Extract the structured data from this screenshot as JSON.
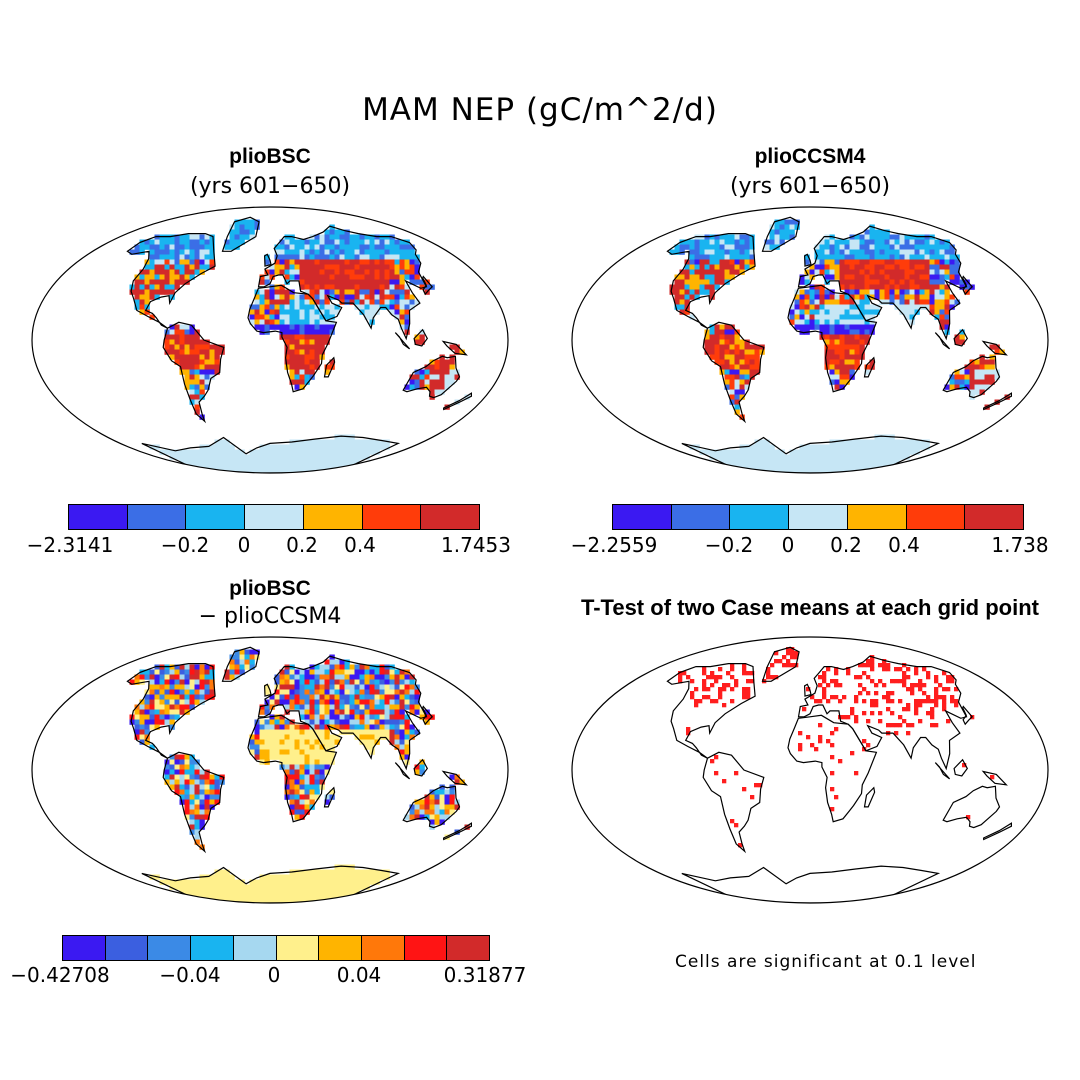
{
  "main_title": "MAM NEP (gC/m^2/d)",
  "panels": {
    "top_left": {
      "title": "plioBSC",
      "subtitle": "(yrs 601−650)"
    },
    "top_right": {
      "title": "plioCCSM4",
      "subtitle": "(yrs 601−650)"
    },
    "bottom_left": {
      "title": "plioBSC",
      "subtitle": "− plioCCSM4"
    },
    "bottom_right": {
      "title": "T-Test of two Case means at each grid point",
      "note": "Cells are significant at 0.1 level"
    }
  },
  "colorbars": {
    "top_left": {
      "colors": [
        "#3b19f2",
        "#3b6ee6",
        "#19b4f0",
        "#c6e6f5",
        "#ffb400",
        "#ff3c0a",
        "#d22a2a"
      ],
      "labels": [
        "−2.3141",
        "−0.2",
        "0",
        "0.2",
        "0.4",
        "1.7453"
      ]
    },
    "top_right": {
      "colors": [
        "#3b19f2",
        "#3b6ee6",
        "#19b4f0",
        "#c6e6f5",
        "#ffb400",
        "#ff3c0a",
        "#d22a2a"
      ],
      "labels": [
        "−2.2559",
        "−0.2",
        "0",
        "0.2",
        "0.4",
        "1.738"
      ]
    },
    "bottom_left": {
      "colors": [
        "#3b19f2",
        "#3b5fe0",
        "#3b8ae6",
        "#19b4f0",
        "#a6d8f0",
        "#fff08c",
        "#ffb400",
        "#ff780a",
        "#ff1414",
        "#d22a2a"
      ],
      "labels": [
        "−0.42708",
        "−0.04",
        "0",
        "0.04",
        "0.31877"
      ]
    }
  }
}
